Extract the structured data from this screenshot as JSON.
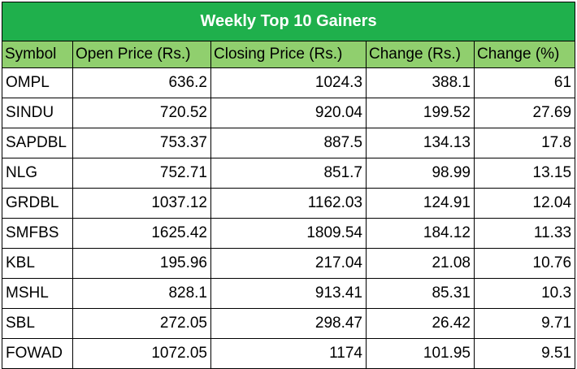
{
  "table": {
    "title": "Weekly Top 10 Gainers",
    "headers": [
      "Symbol",
      "Open Price (Rs.)",
      "Closing Price (Rs.)",
      "Change (Rs.)",
      "Change (%)"
    ],
    "rows": [
      [
        "OMPL",
        "636.2",
        "1024.3",
        "388.1",
        "61"
      ],
      [
        "SINDU",
        "720.52",
        "920.04",
        "199.52",
        "27.69"
      ],
      [
        "SAPDBL",
        "753.37",
        "887.5",
        "134.13",
        "17.8"
      ],
      [
        "NLG",
        "752.71",
        "851.7",
        "98.99",
        "13.15"
      ],
      [
        "GRDBL",
        "1037.12",
        "1162.03",
        "124.91",
        "12.04"
      ],
      [
        "SMFBS",
        "1625.42",
        "1809.54",
        "184.12",
        "11.33"
      ],
      [
        "KBL",
        "195.96",
        "217.04",
        "21.08",
        "10.76"
      ],
      [
        "MSHL",
        "828.1",
        "913.41",
        "85.31",
        "10.3"
      ],
      [
        "SBL",
        "272.05",
        "298.47",
        "26.42",
        "9.71"
      ],
      [
        "FOWAD",
        "1072.05",
        "1174",
        "101.95",
        "9.51"
      ]
    ]
  },
  "colors": {
    "title_bg": "#1fb04c",
    "header_bg": "#90cf6e"
  }
}
